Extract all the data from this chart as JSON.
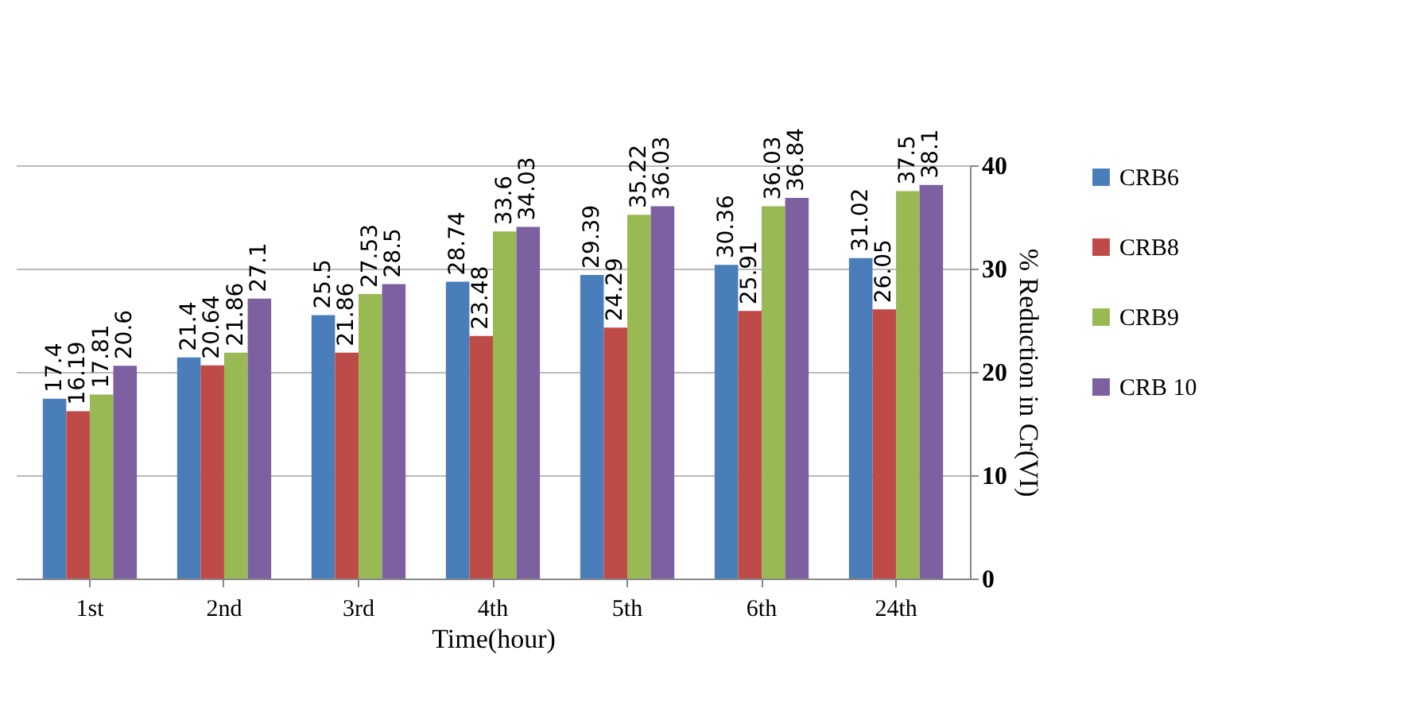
{
  "chart_data": {
    "type": "bar",
    "xlabel": "Time(hour)",
    "ylabel": "% Reduction in  Cr(VI)",
    "categories": [
      "1st",
      "2nd",
      "3rd",
      "4th",
      "5th",
      "6th",
      "24th"
    ],
    "series": [
      {
        "name": "CRB6",
        "color": "#4a7ebb",
        "values": [
          17.4,
          21.4,
          25.5,
          28.74,
          29.39,
          30.36,
          31.02
        ]
      },
      {
        "name": "CRB8",
        "color": "#be4b48",
        "values": [
          16.19,
          20.64,
          21.86,
          23.48,
          24.29,
          25.91,
          26.05
        ]
      },
      {
        "name": "CRB9",
        "color": "#98b954",
        "values": [
          17.81,
          21.86,
          27.53,
          33.6,
          35.22,
          36.03,
          37.5
        ]
      },
      {
        "name": "CRB 10",
        "color": "#7d60a0",
        "values": [
          20.6,
          27.1,
          28.5,
          34.03,
          36.03,
          36.84,
          38.1
        ]
      }
    ],
    "ylim": [
      0,
      40
    ],
    "yticks": [
      0,
      10,
      20,
      30,
      40
    ],
    "grid": "y",
    "legend": "right",
    "data_labels": true
  }
}
